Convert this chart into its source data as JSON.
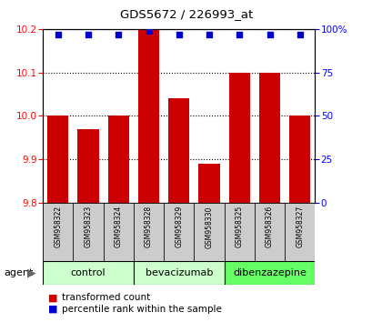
{
  "title": "GDS5672 / 226993_at",
  "samples": [
    "GSM958322",
    "GSM958323",
    "GSM958324",
    "GSM958328",
    "GSM958329",
    "GSM958330",
    "GSM958325",
    "GSM958326",
    "GSM958327"
  ],
  "bar_values": [
    10.0,
    9.97,
    10.0,
    10.2,
    10.04,
    9.89,
    10.1,
    10.1,
    10.0
  ],
  "percentile_values": [
    97,
    97,
    97,
    99,
    97,
    97,
    97,
    97,
    97
  ],
  "bar_bottom": 9.8,
  "ylim": [
    9.8,
    10.2
  ],
  "y2lim": [
    0,
    100
  ],
  "bar_color": "#cc0000",
  "dot_color": "#0000cc",
  "groups": [
    {
      "label": "control",
      "start": 0,
      "end": 3,
      "color": "#ccffcc"
    },
    {
      "label": "bevacizumab",
      "start": 3,
      "end": 6,
      "color": "#ccffcc"
    },
    {
      "label": "dibenzazepine",
      "start": 6,
      "end": 9,
      "color": "#66ff66"
    }
  ],
  "sample_box_color": "#cccccc",
  "yticks": [
    9.8,
    9.9,
    10.0,
    10.1,
    10.2
  ],
  "y2ticks": [
    0,
    25,
    50,
    75,
    100
  ],
  "grid_color": "#000000",
  "legend_red_label": "transformed count",
  "legend_blue_label": "percentile rank within the sample",
  "agent_label": "agent"
}
